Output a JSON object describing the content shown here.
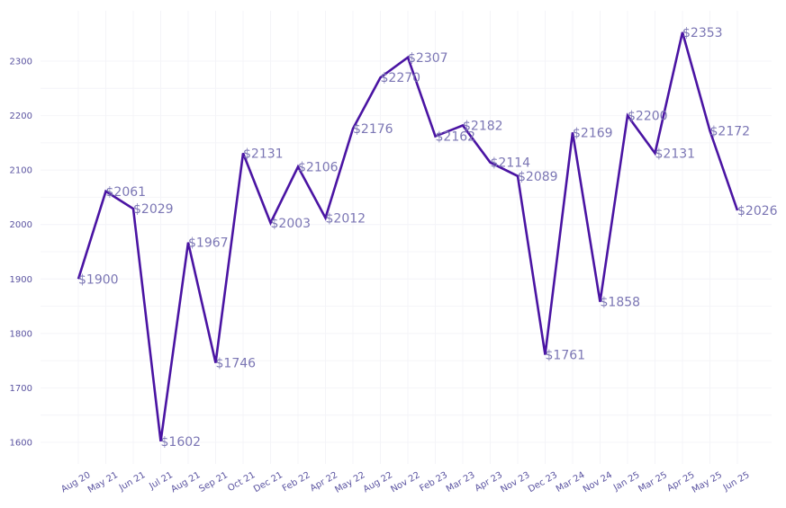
{
  "chart_data": {
    "type": "line",
    "title": "",
    "xlabel": "",
    "ylabel": "",
    "categories": [
      "Aug 20",
      "May 21",
      "Jun 21",
      "Jul 21",
      "Aug 21",
      "Sep 21",
      "Oct 21",
      "Dec 21",
      "Feb 22",
      "Apr 22",
      "May 22",
      "Aug 22",
      "Nov 22",
      "Feb 23",
      "Mar 23",
      "Apr 23",
      "Nov 23",
      "Dec 23",
      "Mar 24",
      "Nov 24",
      "Jan 25",
      "Mar 25",
      "Apr 25",
      "May 25",
      "Jun 25"
    ],
    "series": [
      {
        "values": [
          1900,
          2061,
          2029,
          1602,
          1967,
          1746,
          2131,
          2003,
          2106,
          2012,
          2176,
          2270,
          2307,
          2162,
          2182,
          2114,
          2089,
          1761,
          2169,
          1858,
          2200,
          2131,
          2353,
          2172,
          2026
        ],
        "labels": [
          "$1900",
          "$2061",
          "$2029",
          "$1602",
          "$1967",
          "$1746",
          "$2131",
          "$2003",
          "$2106",
          "$2012",
          "$2176",
          "$2270",
          "$2307",
          "$2162",
          "$2182",
          "$2114",
          "$2089",
          "$1761",
          "$2169",
          "$1858",
          "$2200",
          "$2131",
          "$2353",
          "$2172",
          "$2026"
        ]
      }
    ],
    "yticks": [
      1600,
      1700,
      1800,
      1900,
      2000,
      2100,
      2200,
      2300
    ],
    "ylim": [
      1563,
      2375
    ],
    "grid": true,
    "legend": "none",
    "colors": {
      "line": "#4a14a3",
      "tick_text": "#5a53a0",
      "data_label": "#7b76b4",
      "grid": "#f4f4f8"
    }
  }
}
